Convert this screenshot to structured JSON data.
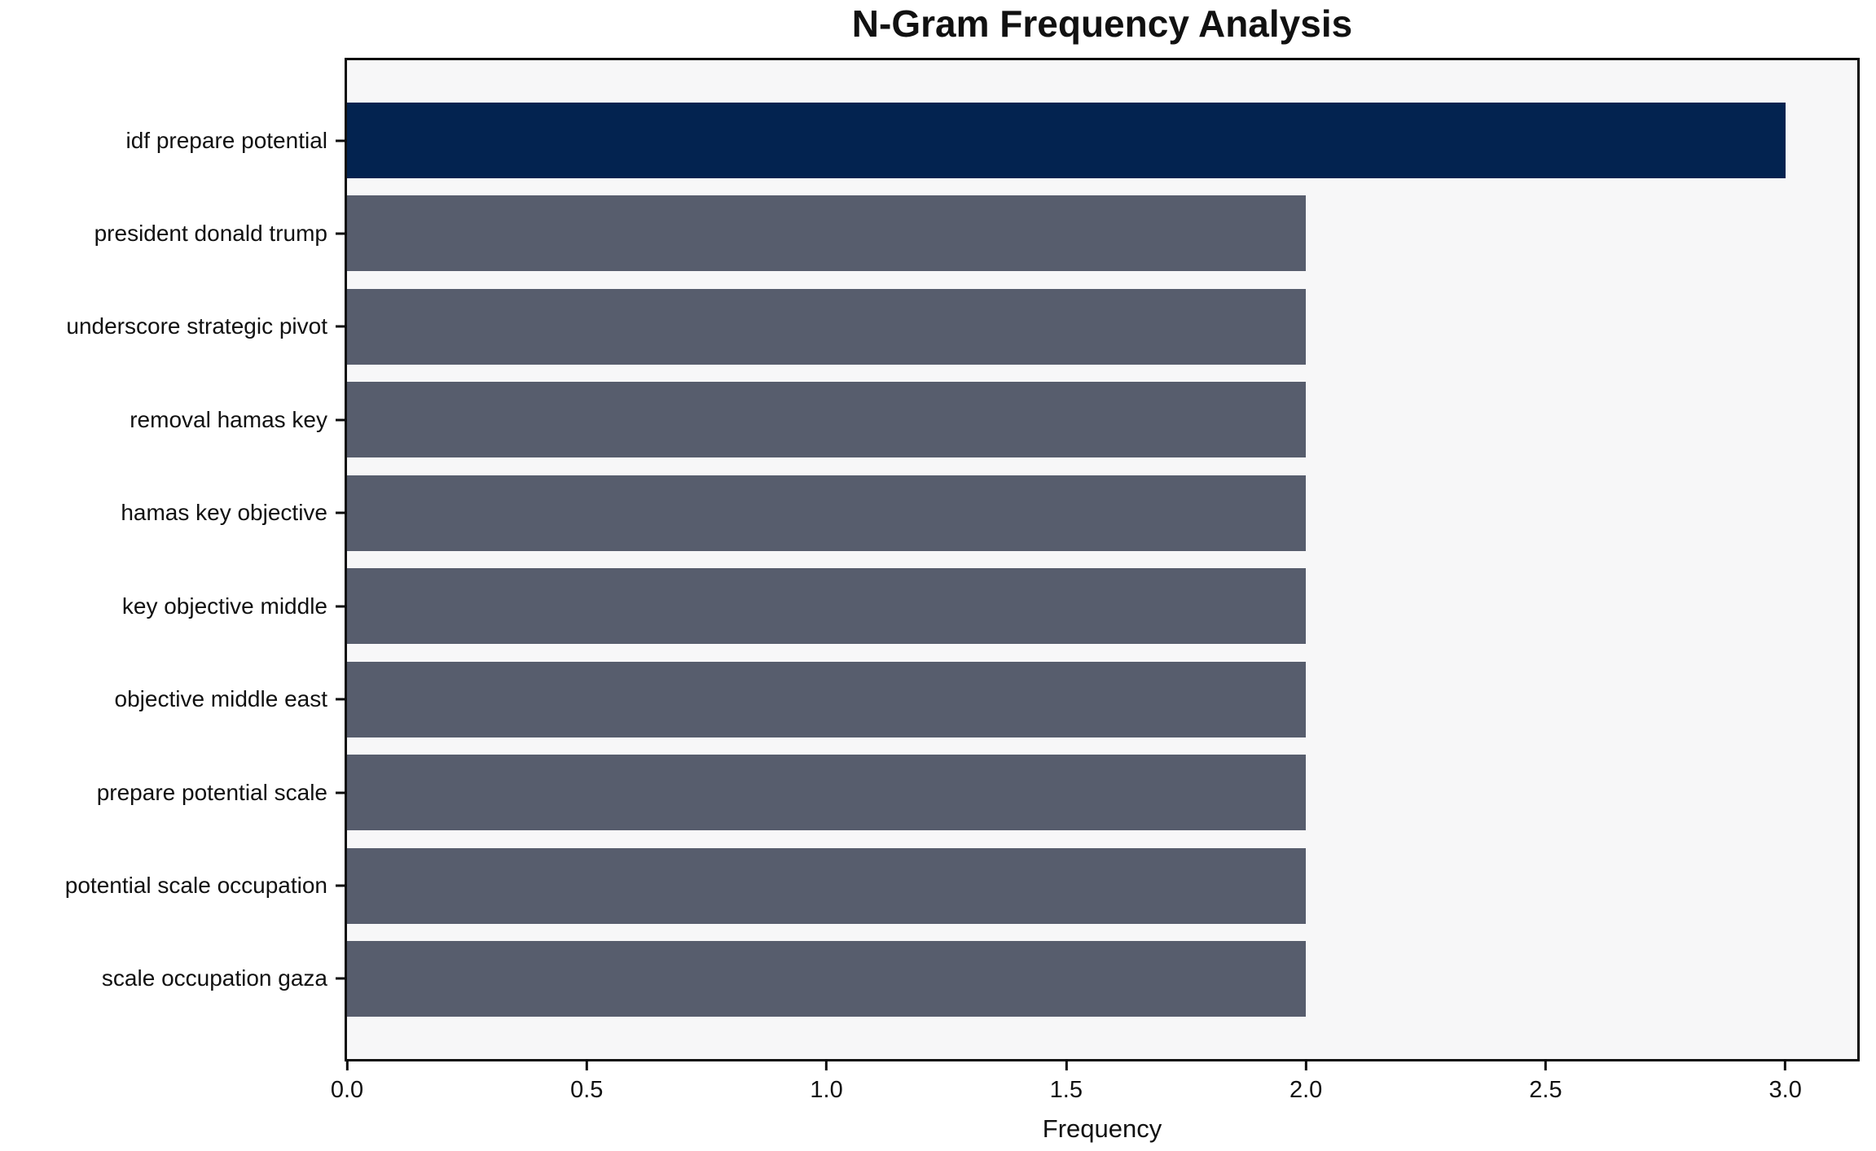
{
  "chart_data": {
    "type": "bar",
    "orientation": "horizontal",
    "title": "N-Gram Frequency Analysis",
    "xlabel": "Frequency",
    "ylabel": "",
    "categories": [
      "idf prepare potential",
      "president donald trump",
      "underscore strategic pivot",
      "removal hamas key",
      "hamas key objective",
      "key objective middle",
      "objective middle east",
      "prepare potential scale",
      "potential scale occupation",
      "scale occupation gaza"
    ],
    "values": [
      3,
      2,
      2,
      2,
      2,
      2,
      2,
      2,
      2,
      2
    ],
    "xlim": [
      0,
      3.15
    ],
    "xtick_labels": [
      "0.0",
      "0.5",
      "1.0",
      "1.5",
      "2.0",
      "2.5",
      "3.0"
    ],
    "grid": false,
    "legend": "none",
    "highlight_index": 0,
    "colors": {
      "highlight_bar": "#032350",
      "default_bar": "#575d6d",
      "plot_background": "#f7f7f8",
      "figure_background": "#ffffff",
      "spine": "#0c0c0c",
      "text": "#111111"
    }
  }
}
